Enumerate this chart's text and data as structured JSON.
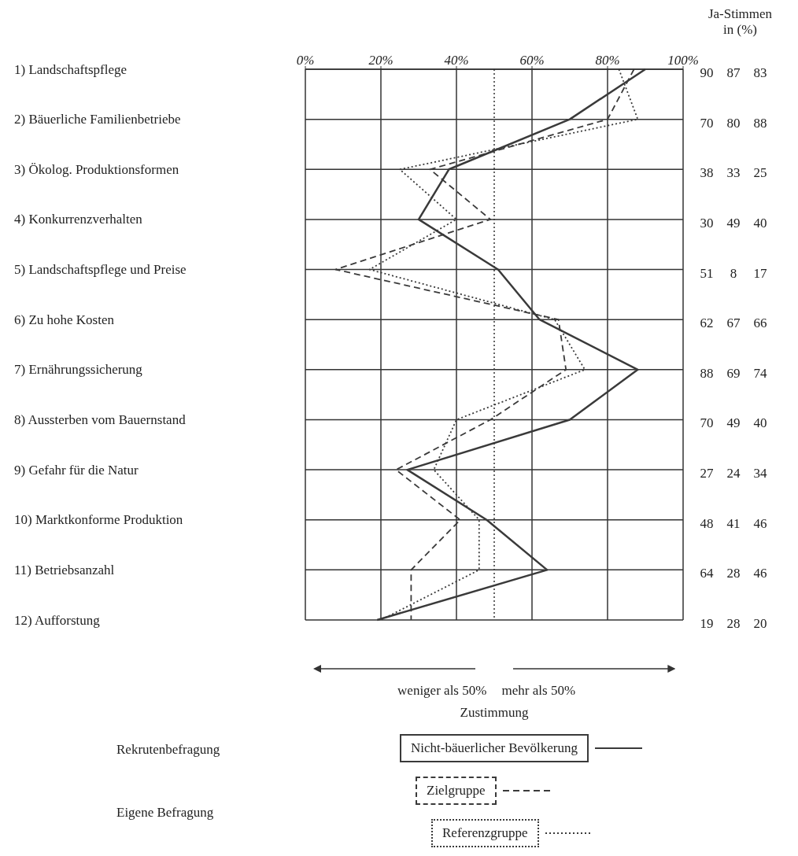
{
  "chart_data": {
    "type": "line",
    "orientation": "horizontal",
    "categories": [
      "1) Landschaftspflege",
      "2) Bäuerliche Familienbetriebe",
      "3) Ökolog. Produktionsformen",
      "4) Konkurrenzverhalten",
      "5) Landschaftspflege und Preise",
      "6) Zu hohe Kosten",
      "7) Ernährungssicherung",
      "8) Aussterben vom Bauernstand",
      "9) Gefahr für die Natur",
      "10) Marktkonforme Produktion",
      "11) Betriebsanzahl",
      "12) Aufforstung"
    ],
    "series": [
      {
        "name": "Nicht-bäuerlicher Bevölkerung",
        "color": "#3a3a3a",
        "line_style": "solid",
        "values": [
          90,
          70,
          38,
          30,
          51,
          62,
          88,
          70,
          27,
          48,
          64,
          19
        ]
      },
      {
        "name": "Zielgruppe",
        "color": "#3a3a3a",
        "line_style": "dashed",
        "values": [
          87,
          80,
          33,
          49,
          8,
          67,
          69,
          49,
          24,
          41,
          28,
          28
        ]
      },
      {
        "name": "Referenzgruppe",
        "color": "#3a3a3a",
        "line_style": "dotted",
        "values": [
          83,
          88,
          25,
          40,
          17,
          66,
          74,
          40,
          34,
          46,
          46,
          20
        ]
      }
    ],
    "x2lim": [
      0,
      100
    ],
    "x2ticks": [
      {
        "value": 0,
        "label": "0%"
      },
      {
        "value": 20,
        "label": "20%"
      },
      {
        "value": 40,
        "label": "40%"
      },
      {
        "value": 60,
        "label": "60%"
      },
      {
        "value": 80,
        "label": "80%"
      },
      {
        "value": 100,
        "label": "100%"
      }
    ],
    "ref_lines": [
      {
        "axis": "x",
        "value": 50,
        "line_style": "dotted"
      }
    ],
    "annotations": [
      "Ja-Stimmen in (%)",
      "weniger als 50%",
      "mehr als 50%",
      "Zustimmung",
      "Rekrutenbefragung",
      "Eigene Befragung"
    ],
    "data_labels": true,
    "grid": true,
    "marker": "none",
    "legend": "bottom"
  }
}
